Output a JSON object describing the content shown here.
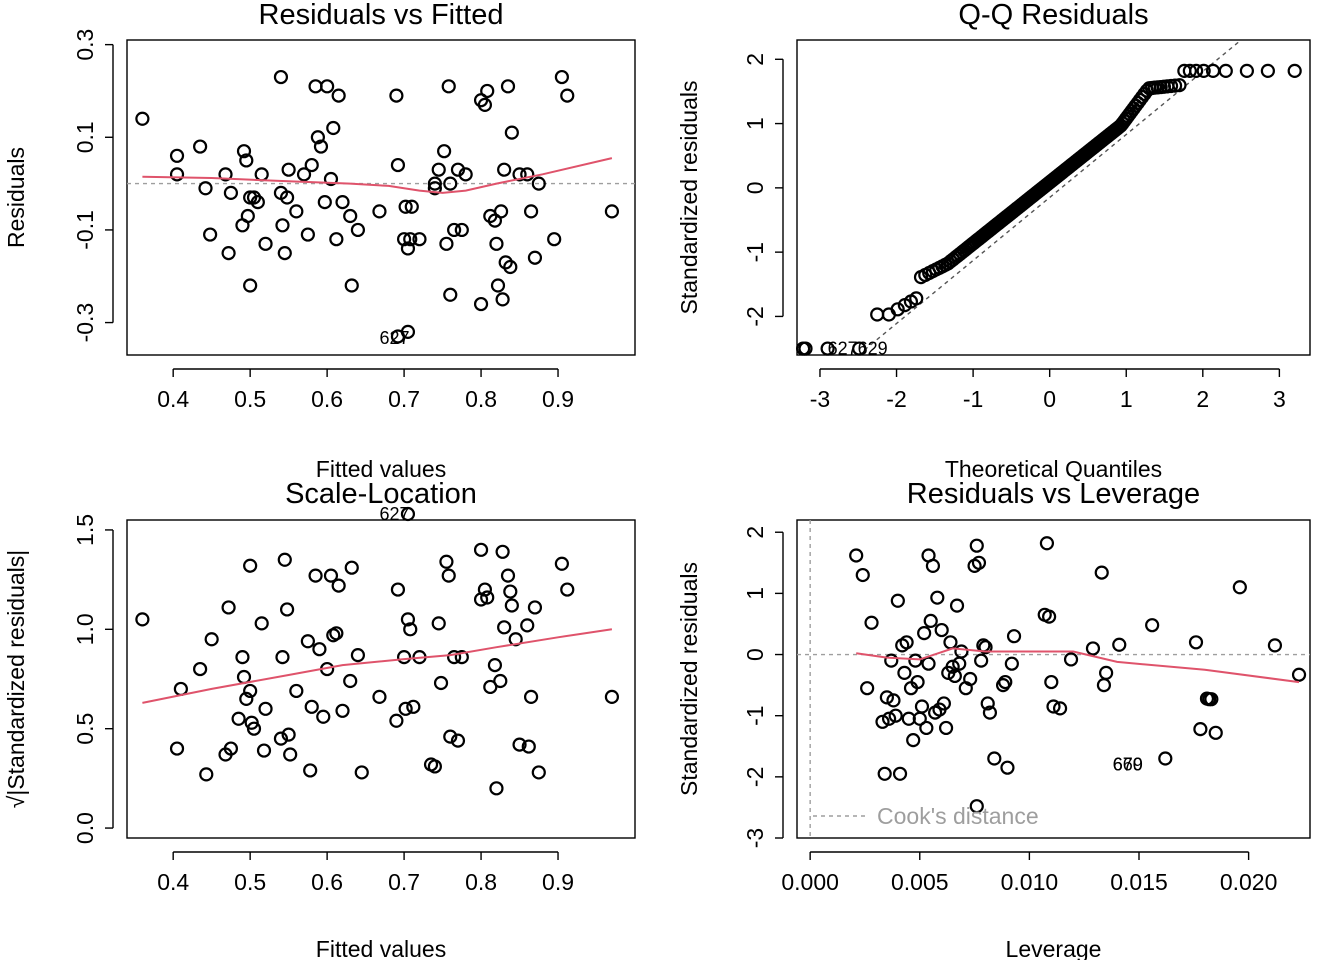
{
  "chart_data": [
    {
      "id": "resid-fitted",
      "type": "scatter",
      "title": "Residuals vs Fitted",
      "xlabel": "Fitted values",
      "ylabel": "Residuals",
      "xlim": [
        0.34,
        1.0
      ],
      "ylim": [
        -0.37,
        0.31
      ],
      "xticks": [
        0.4,
        0.5,
        0.6,
        0.7,
        0.8,
        0.9
      ],
      "xtick_labels": [
        "0.4",
        "0.5",
        "0.6",
        "0.7",
        "0.8",
        "0.9"
      ],
      "yticks": [
        -0.3,
        -0.1,
        0.1,
        0.3
      ],
      "ytick_labels": [
        "-0.3",
        "-0.1",
        "0.1",
        "0.3"
      ],
      "hline": 0,
      "points": [
        [
          0.36,
          0.14
        ],
        [
          0.405,
          0.06
        ],
        [
          0.405,
          0.02
        ],
        [
          0.435,
          0.08
        ],
        [
          0.442,
          -0.01
        ],
        [
          0.448,
          -0.11
        ],
        [
          0.468,
          0.02
        ],
        [
          0.472,
          -0.15
        ],
        [
          0.475,
          -0.02
        ],
        [
          0.49,
          -0.09
        ],
        [
          0.492,
          0.07
        ],
        [
          0.495,
          0.05
        ],
        [
          0.497,
          -0.07
        ],
        [
          0.5,
          -0.03
        ],
        [
          0.5,
          -0.22
        ],
        [
          0.505,
          -0.03
        ],
        [
          0.51,
          -0.04
        ],
        [
          0.515,
          0.02
        ],
        [
          0.52,
          -0.13
        ],
        [
          0.54,
          0.23
        ],
        [
          0.54,
          -0.02
        ],
        [
          0.542,
          -0.09
        ],
        [
          0.545,
          -0.15
        ],
        [
          0.548,
          -0.03
        ],
        [
          0.55,
          0.03
        ],
        [
          0.56,
          -0.06
        ],
        [
          0.57,
          0.02
        ],
        [
          0.575,
          -0.11
        ],
        [
          0.58,
          0.04
        ],
        [
          0.585,
          0.21
        ],
        [
          0.588,
          0.1
        ],
        [
          0.592,
          0.08
        ],
        [
          0.597,
          -0.04
        ],
        [
          0.6,
          0.21
        ],
        [
          0.605,
          0.01
        ],
        [
          0.608,
          0.12
        ],
        [
          0.612,
          -0.12
        ],
        [
          0.615,
          0.19
        ],
        [
          0.62,
          -0.04
        ],
        [
          0.63,
          -0.07
        ],
        [
          0.632,
          -0.22
        ],
        [
          0.64,
          -0.1
        ],
        [
          0.668,
          -0.06
        ],
        [
          0.69,
          0.19
        ],
        [
          0.692,
          0.04
        ],
        [
          0.7,
          -0.12
        ],
        [
          0.702,
          -0.05
        ],
        [
          0.705,
          -0.14
        ],
        [
          0.708,
          -0.12
        ],
        [
          0.71,
          -0.05
        ],
        [
          0.72,
          -0.12
        ],
        [
          0.74,
          0.0
        ],
        [
          0.74,
          -0.01
        ],
        [
          0.745,
          0.03
        ],
        [
          0.752,
          0.07
        ],
        [
          0.755,
          -0.13
        ],
        [
          0.758,
          0.21
        ],
        [
          0.76,
          0.0
        ],
        [
          0.765,
          -0.1
        ],
        [
          0.77,
          0.03
        ],
        [
          0.775,
          -0.1
        ],
        [
          0.78,
          0.02
        ],
        [
          0.8,
          0.18
        ],
        [
          0.805,
          0.17
        ],
        [
          0.808,
          0.2
        ],
        [
          0.812,
          -0.07
        ],
        [
          0.818,
          -0.08
        ],
        [
          0.82,
          -0.13
        ],
        [
          0.822,
          -0.22
        ],
        [
          0.826,
          -0.06
        ],
        [
          0.83,
          0.03
        ],
        [
          0.832,
          -0.17
        ],
        [
          0.835,
          0.21
        ],
        [
          0.838,
          -0.18
        ],
        [
          0.84,
          0.11
        ],
        [
          0.85,
          0.02
        ],
        [
          0.86,
          0.02
        ],
        [
          0.865,
          -0.06
        ],
        [
          0.87,
          -0.16
        ],
        [
          0.875,
          0.0
        ],
        [
          0.895,
          -0.12
        ],
        [
          0.905,
          0.23
        ],
        [
          0.912,
          0.19
        ],
        [
          0.97,
          -0.06
        ],
        [
          0.76,
          -0.24
        ],
        [
          0.8,
          -0.26
        ],
        [
          0.828,
          -0.25
        ],
        [
          0.692,
          -0.33
        ],
        [
          0.705,
          -0.32
        ]
      ],
      "smooth": [
        [
          0.36,
          0.015
        ],
        [
          0.45,
          0.012
        ],
        [
          0.55,
          0.005
        ],
        [
          0.63,
          0.0
        ],
        [
          0.68,
          -0.005
        ],
        [
          0.72,
          -0.015
        ],
        [
          0.75,
          -0.02
        ],
        [
          0.78,
          -0.015
        ],
        [
          0.82,
          0.0
        ],
        [
          0.88,
          0.02
        ],
        [
          0.97,
          0.055
        ]
      ],
      "point_labels": [
        {
          "text": "627",
          "x": 0.668,
          "y": -0.333
        }
      ]
    },
    {
      "id": "qq",
      "type": "scatter",
      "title": "Q-Q Residuals",
      "xlabel": "Theoretical Quantiles",
      "ylabel": "Standardized residuals",
      "xlim": [
        -3.3,
        3.4
      ],
      "ylim": [
        -2.6,
        2.3
      ],
      "xticks": [
        -3,
        -2,
        -1,
        0,
        1,
        2,
        3
      ],
      "xtick_labels": [
        "-3",
        "-2",
        "-1",
        "0",
        "1",
        "2",
        "3"
      ],
      "yticks": [
        -2,
        -1,
        0,
        1,
        2
      ],
      "ytick_labels": [
        "-2",
        "-1",
        "0",
        "1",
        "2"
      ],
      "qq_line": [
        [
          -2.5,
          -2.6
        ],
        [
          2.4,
          2.3
        ]
      ],
      "point_labels": [
        {
          "text": "627629",
          "x": -2.9,
          "y": -2.5
        }
      ]
    },
    {
      "id": "scale-location",
      "type": "scatter",
      "title": "Scale-Location",
      "xlabel": "Fitted values",
      "ylabel": "√|Standardized residuals|",
      "xlim": [
        0.34,
        1.0
      ],
      "ylim": [
        -0.05,
        1.55
      ],
      "xticks": [
        0.4,
        0.5,
        0.6,
        0.7,
        0.8,
        0.9
      ],
      "xtick_labels": [
        "0.4",
        "0.5",
        "0.6",
        "0.7",
        "0.8",
        "0.9"
      ],
      "yticks": [
        0.0,
        0.5,
        1.0,
        1.5
      ],
      "ytick_labels": [
        "0.0",
        "0.5",
        "1.0",
        "1.5"
      ],
      "points": [
        [
          0.36,
          1.05
        ],
        [
          0.405,
          0.4
        ],
        [
          0.41,
          0.7
        ],
        [
          0.435,
          0.8
        ],
        [
          0.443,
          0.27
        ],
        [
          0.45,
          0.95
        ],
        [
          0.468,
          0.37
        ],
        [
          0.472,
          1.11
        ],
        [
          0.475,
          0.4
        ],
        [
          0.485,
          0.55
        ],
        [
          0.49,
          0.86
        ],
        [
          0.492,
          0.76
        ],
        [
          0.495,
          0.65
        ],
        [
          0.5,
          0.69
        ],
        [
          0.5,
          1.32
        ],
        [
          0.502,
          0.53
        ],
        [
          0.505,
          0.5
        ],
        [
          0.515,
          1.03
        ],
        [
          0.518,
          0.39
        ],
        [
          0.52,
          0.6
        ],
        [
          0.54,
          0.45
        ],
        [
          0.542,
          0.86
        ],
        [
          0.545,
          1.35
        ],
        [
          0.548,
          1.1
        ],
        [
          0.55,
          0.47
        ],
        [
          0.552,
          0.37
        ],
        [
          0.56,
          0.69
        ],
        [
          0.575,
          0.94
        ],
        [
          0.578,
          0.29
        ],
        [
          0.58,
          0.61
        ],
        [
          0.585,
          1.27
        ],
        [
          0.59,
          0.9
        ],
        [
          0.595,
          0.56
        ],
        [
          0.6,
          0.8
        ],
        [
          0.605,
          1.27
        ],
        [
          0.608,
          0.97
        ],
        [
          0.612,
          0.98
        ],
        [
          0.615,
          1.22
        ],
        [
          0.62,
          0.59
        ],
        [
          0.63,
          0.74
        ],
        [
          0.632,
          1.31
        ],
        [
          0.64,
          0.87
        ],
        [
          0.645,
          0.28
        ],
        [
          0.668,
          0.66
        ],
        [
          0.69,
          0.54
        ],
        [
          0.692,
          1.2
        ],
        [
          0.7,
          0.86
        ],
        [
          0.702,
          0.6
        ],
        [
          0.705,
          1.05
        ],
        [
          0.708,
          1.0
        ],
        [
          0.712,
          0.61
        ],
        [
          0.72,
          0.86
        ],
        [
          0.735,
          0.32
        ],
        [
          0.74,
          0.31
        ],
        [
          0.745,
          1.03
        ],
        [
          0.748,
          0.73
        ],
        [
          0.755,
          1.34
        ],
        [
          0.758,
          1.27
        ],
        [
          0.76,
          0.46
        ],
        [
          0.765,
          0.86
        ],
        [
          0.77,
          0.44
        ],
        [
          0.775,
          0.86
        ],
        [
          0.8,
          1.4
        ],
        [
          0.8,
          1.15
        ],
        [
          0.805,
          1.2
        ],
        [
          0.808,
          1.16
        ],
        [
          0.812,
          0.71
        ],
        [
          0.818,
          0.82
        ],
        [
          0.82,
          0.2
        ],
        [
          0.825,
          0.74
        ],
        [
          0.828,
          1.39
        ],
        [
          0.83,
          1.01
        ],
        [
          0.835,
          1.27
        ],
        [
          0.838,
          1.19
        ],
        [
          0.84,
          1.12
        ],
        [
          0.845,
          0.95
        ],
        [
          0.85,
          0.42
        ],
        [
          0.86,
          1.02
        ],
        [
          0.862,
          0.41
        ],
        [
          0.865,
          0.66
        ],
        [
          0.87,
          1.11
        ],
        [
          0.875,
          0.28
        ],
        [
          0.905,
          1.33
        ],
        [
          0.912,
          1.2
        ],
        [
          0.97,
          0.66
        ],
        [
          0.705,
          1.58
        ]
      ],
      "smooth": [
        [
          0.36,
          0.63
        ],
        [
          0.45,
          0.7
        ],
        [
          0.55,
          0.77
        ],
        [
          0.62,
          0.82
        ],
        [
          0.7,
          0.85
        ],
        [
          0.76,
          0.87
        ],
        [
          0.82,
          0.91
        ],
        [
          0.9,
          0.96
        ],
        [
          0.97,
          1.0
        ]
      ],
      "point_labels": [
        {
          "text": "627",
          "x": 0.668,
          "y": 1.58
        }
      ]
    },
    {
      "id": "resid-leverage",
      "type": "scatter",
      "title": "Residuals vs Leverage",
      "xlabel": "Leverage",
      "ylabel": "Standardized residuals",
      "xlim": [
        -0.0006,
        0.0228
      ],
      "ylim": [
        -3.0,
        2.2
      ],
      "xticks": [
        0.0,
        0.005,
        0.01,
        0.015,
        0.02
      ],
      "xtick_labels": [
        "0.000",
        "0.005",
        "0.010",
        "0.015",
        "0.020"
      ],
      "yticks": [
        -3,
        -2,
        -1,
        0,
        1,
        2
      ],
      "ytick_labels": [
        "-3",
        "-2",
        "-1",
        "0",
        "1",
        "2"
      ],
      "legend": "Cook's distance",
      "hline": 0,
      "vline": 0,
      "points": [
        [
          0.0021,
          1.62
        ],
        [
          0.0024,
          1.3
        ],
        [
          0.0026,
          -0.55
        ],
        [
          0.0028,
          0.52
        ],
        [
          0.0033,
          -1.1
        ],
        [
          0.0034,
          -1.95
        ],
        [
          0.0035,
          -0.7
        ],
        [
          0.0036,
          -1.05
        ],
        [
          0.0037,
          -0.1
        ],
        [
          0.0038,
          -0.75
        ],
        [
          0.0039,
          -1.0
        ],
        [
          0.004,
          0.88
        ],
        [
          0.0041,
          -1.95
        ],
        [
          0.0042,
          0.15
        ],
        [
          0.0043,
          -0.3
        ],
        [
          0.0044,
          0.2
        ],
        [
          0.0045,
          -1.05
        ],
        [
          0.0046,
          -0.55
        ],
        [
          0.0047,
          -1.4
        ],
        [
          0.0048,
          -0.1
        ],
        [
          0.0049,
          -0.45
        ],
        [
          0.005,
          -1.05
        ],
        [
          0.0051,
          -0.85
        ],
        [
          0.0052,
          0.35
        ],
        [
          0.0053,
          -1.2
        ],
        [
          0.0054,
          1.62
        ],
        [
          0.0055,
          0.55
        ],
        [
          0.0056,
          1.45
        ],
        [
          0.0057,
          -0.95
        ],
        [
          0.0058,
          0.93
        ],
        [
          0.0059,
          -0.9
        ],
        [
          0.006,
          0.4
        ],
        [
          0.0061,
          -0.8
        ],
        [
          0.0062,
          -1.2
        ],
        [
          0.0063,
          -0.3
        ],
        [
          0.0064,
          0.2
        ],
        [
          0.0065,
          -0.2
        ],
        [
          0.0066,
          -0.35
        ],
        [
          0.0067,
          0.8
        ],
        [
          0.0068,
          -0.15
        ],
        [
          0.0069,
          0.05
        ],
        [
          0.0071,
          -0.55
        ],
        [
          0.0073,
          -0.4
        ],
        [
          0.0075,
          1.45
        ],
        [
          0.0076,
          -2.48
        ],
        [
          0.0077,
          1.5
        ],
        [
          0.0078,
          -0.1
        ],
        [
          0.0079,
          0.15
        ],
        [
          0.008,
          0.12
        ],
        [
          0.0081,
          -0.8
        ],
        [
          0.0082,
          -0.95
        ],
        [
          0.0084,
          -1.7
        ],
        [
          0.0088,
          -0.5
        ],
        [
          0.0089,
          -0.45
        ],
        [
          0.009,
          -1.85
        ],
        [
          0.0092,
          -0.15
        ],
        [
          0.0093,
          0.3
        ],
        [
          0.0107,
          0.65
        ],
        [
          0.0108,
          1.82
        ],
        [
          0.0109,
          0.62
        ],
        [
          0.011,
          -0.45
        ],
        [
          0.0111,
          -0.85
        ],
        [
          0.0114,
          -0.88
        ],
        [
          0.0119,
          -0.08
        ],
        [
          0.0129,
          0.1
        ],
        [
          0.0133,
          1.34
        ],
        [
          0.0134,
          -0.5
        ],
        [
          0.0135,
          -0.3
        ],
        [
          0.0141,
          0.16
        ],
        [
          0.0156,
          0.48
        ],
        [
          0.0162,
          -1.7
        ],
        [
          0.0176,
          0.2
        ],
        [
          0.0178,
          -1.22
        ],
        [
          0.0181,
          -0.72
        ],
        [
          0.0182,
          -0.73
        ],
        [
          0.0183,
          -0.73
        ],
        [
          0.0185,
          -1.28
        ],
        [
          0.0196,
          1.1
        ],
        [
          0.0212,
          0.15
        ],
        [
          0.0223,
          -0.33
        ],
        [
          0.0076,
          1.78
        ],
        [
          0.0054,
          -0.15
        ]
      ],
      "smooth": [
        [
          0.0021,
          0.02
        ],
        [
          0.0035,
          -0.05
        ],
        [
          0.005,
          -0.08
        ],
        [
          0.0065,
          0.1
        ],
        [
          0.008,
          0.05
        ],
        [
          0.01,
          0.05
        ],
        [
          0.012,
          0.05
        ],
        [
          0.014,
          -0.12
        ],
        [
          0.018,
          -0.25
        ],
        [
          0.0223,
          -0.45
        ]
      ],
      "point_labels": [
        {
          "text": "660",
          "x": 0.0138,
          "y": -1.8
        },
        {
          "text": "679",
          "x": 0.0138,
          "y": -1.8
        }
      ]
    }
  ]
}
